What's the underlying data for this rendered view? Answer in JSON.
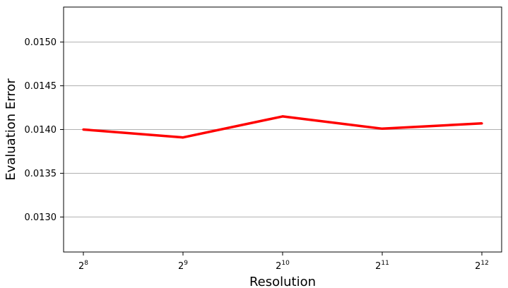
{
  "chart_data": {
    "type": "line",
    "x_scale": "log2",
    "x": [
      256,
      512,
      1024,
      2048,
      4096
    ],
    "x_tick_labels": [
      {
        "base": "2",
        "exp": "8"
      },
      {
        "base": "2",
        "exp": "9"
      },
      {
        "base": "2",
        "exp": "10"
      },
      {
        "base": "2",
        "exp": "11"
      },
      {
        "base": "2",
        "exp": "12"
      }
    ],
    "series": [
      {
        "values": [
          0.014,
          0.01391,
          0.01415,
          0.01401,
          0.01407
        ],
        "color": "#ff0000"
      }
    ],
    "y_ticks": [
      "0.0130",
      "0.0135",
      "0.0140",
      "0.0145",
      "0.0150"
    ],
    "ylim": [
      0.0126,
      0.0154
    ],
    "xlabel": "Resolution",
    "ylabel": "Evaluation Error",
    "grid": "horizontal",
    "grid_color": "#b0b0b0"
  }
}
